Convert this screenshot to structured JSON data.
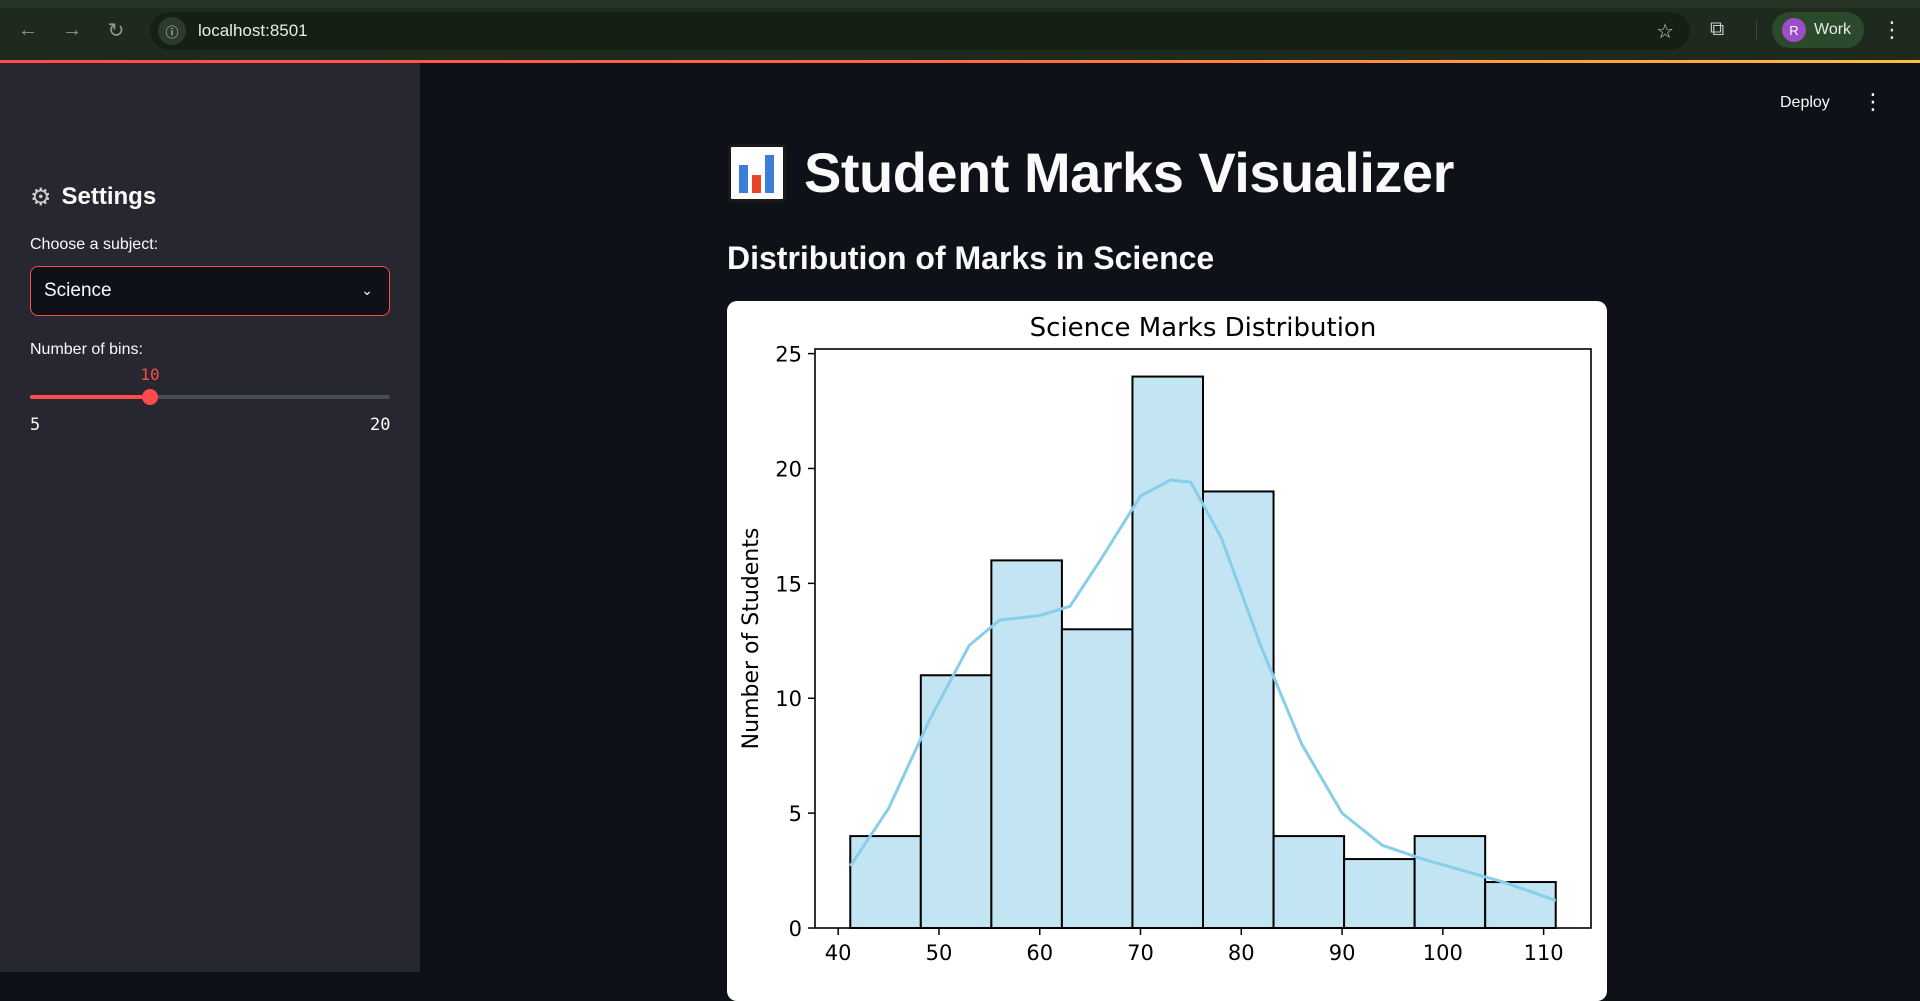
{
  "browser": {
    "url": "localhost:8501",
    "profile_initial": "R",
    "profile_label": "Work"
  },
  "app": {
    "deploy_label": "Deploy",
    "title": "Student Marks Visualizer",
    "title_icon": "bar-chart-emoji",
    "subheader": "Distribution of Marks in Science"
  },
  "sidebar": {
    "header_icon": "gear-icon",
    "header": "Settings",
    "subject_label": "Choose a subject:",
    "subject_value": "Science",
    "bins_label": "Number of bins:",
    "bins_value": "10",
    "bins_min": "5",
    "bins_max": "20"
  },
  "colors": {
    "accent": "#ff4b4b",
    "bar_fill": "#c2e4f3",
    "kde_line": "#87ceeb"
  },
  "chart_data": {
    "type": "bar",
    "title": "Science Marks Distribution",
    "xlabel": "",
    "ylabel": "Number of Students",
    "bin_edges": [
      41.2,
      48.2,
      55.2,
      62.2,
      69.2,
      76.2,
      83.2,
      90.2,
      97.2,
      104.2,
      111.2
    ],
    "values": [
      4,
      11,
      16,
      13,
      24,
      19,
      4,
      3,
      4,
      2
    ],
    "xlim": [
      37.7,
      114.7
    ],
    "ylim": [
      0,
      25.2
    ],
    "x_ticks": [
      "40",
      "50",
      "60",
      "70",
      "80",
      "90",
      "100",
      "110"
    ],
    "y_ticks": [
      "0",
      "5",
      "10",
      "15",
      "20",
      "25"
    ],
    "kde": {
      "x": [
        41.2,
        45,
        49,
        53,
        56,
        60,
        63,
        66,
        70,
        73,
        75,
        78,
        82,
        86,
        90,
        94,
        98,
        102,
        106,
        111.2
      ],
      "y": [
        2.7,
        5.2,
        9,
        12.3,
        13.4,
        13.6,
        14,
        16,
        18.8,
        19.5,
        19.4,
        17,
        12.2,
        8,
        5,
        3.6,
        3,
        2.5,
        2,
        1.2
      ]
    },
    "grid": false,
    "legend": "none"
  }
}
